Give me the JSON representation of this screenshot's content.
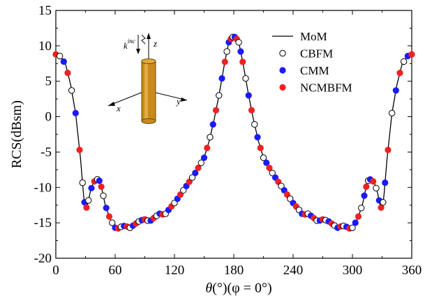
{
  "chart_data": {
    "type": "line",
    "xlabel": {
      "theta_symbol": "θ",
      "theta_unit": "(°)",
      "phi_part": "(φ = 0°)"
    },
    "ylabel": "RCS(dBsm)",
    "xlim": [
      0,
      360
    ],
    "ylim": [
      -20,
      15
    ],
    "xticks": [
      0,
      60,
      120,
      180,
      240,
      300,
      360
    ],
    "yticks": [
      -20,
      -15,
      -10,
      -5,
      0,
      5,
      10,
      15
    ],
    "grid": false,
    "legend": {
      "placement": "top-right"
    },
    "series": [
      {
        "name": "MoM",
        "style": "line",
        "color": "#000000"
      },
      {
        "name": "CBFM",
        "style": "open-circle",
        "color": "#000000",
        "sample_start": 1,
        "sample_step": 3
      },
      {
        "name": "CMM",
        "style": "filled-circle",
        "color": "#1a1aff",
        "sample_start": 2,
        "sample_step": 3
      },
      {
        "name": "NCMBFM",
        "style": "filled-circle",
        "color": "#ee2222",
        "sample_start": 0,
        "sample_step": 3
      }
    ],
    "curve": {
      "x": [
        0,
        5,
        10,
        15,
        20,
        25,
        28,
        30,
        32,
        35,
        38,
        40,
        43,
        45,
        47,
        50,
        55,
        60,
        62,
        65,
        70,
        75,
        80,
        85,
        90,
        95,
        100,
        105,
        110,
        115,
        120,
        125,
        130,
        135,
        140,
        145,
        150,
        155,
        160,
        165,
        170,
        173,
        175,
        178,
        180,
        182,
        185,
        187,
        190,
        195,
        200,
        205,
        210,
        215,
        220,
        225,
        230,
        235,
        240,
        245,
        250,
        255,
        260,
        265,
        270,
        275,
        280,
        285,
        290,
        295,
        298,
        300,
        305,
        310,
        313,
        315,
        317,
        320,
        322,
        325,
        328,
        330,
        332,
        335,
        340,
        345,
        350,
        355,
        360
      ],
      "y": [
        8.8,
        8.5,
        7.3,
        4.5,
        0.5,
        -6.0,
        -11.0,
        -13.2,
        -12.5,
        -10.5,
        -9.3,
        -9.0,
        -8.8,
        -9.3,
        -10.5,
        -12.5,
        -14.5,
        -15.7,
        -15.9,
        -15.6,
        -15.4,
        -15.7,
        -15.2,
        -14.7,
        -14.5,
        -14.8,
        -14.2,
        -13.7,
        -13.9,
        -13.0,
        -12.2,
        -11.2,
        -10.2,
        -9.2,
        -8.2,
        -7.0,
        -5.8,
        -3.5,
        -0.5,
        3.0,
        7.0,
        9.2,
        10.5,
        11.2,
        11.3,
        11.2,
        10.5,
        9.2,
        7.0,
        3.0,
        -0.5,
        -3.5,
        -5.8,
        -7.0,
        -8.2,
        -9.2,
        -10.2,
        -11.2,
        -12.2,
        -13.0,
        -13.9,
        -13.7,
        -14.2,
        -14.8,
        -14.5,
        -14.7,
        -15.2,
        -15.7,
        -15.4,
        -15.6,
        -15.9,
        -15.7,
        -14.5,
        -12.5,
        -10.5,
        -9.3,
        -8.8,
        -9.0,
        -9.3,
        -10.5,
        -12.5,
        -13.2,
        -11.0,
        -6.0,
        0.5,
        4.5,
        7.3,
        8.5,
        8.8
      ]
    },
    "marker_x": [
      0,
      4,
      8,
      12,
      16,
      20,
      24,
      27,
      29,
      31,
      33,
      36,
      39,
      42,
      44,
      46,
      48,
      51,
      54,
      57,
      60,
      63,
      66,
      69,
      72,
      75,
      78,
      81,
      84,
      87,
      90,
      93,
      96,
      99,
      102,
      105,
      108,
      111,
      114,
      117,
      120,
      123,
      126,
      129,
      132,
      135,
      138,
      141,
      144,
      147,
      150,
      153,
      156,
      159,
      162,
      165,
      168,
      171,
      173,
      175,
      177,
      179,
      181,
      183,
      185,
      187,
      189,
      192,
      195,
      198,
      201,
      204,
      207,
      210,
      213,
      216,
      219,
      222,
      225,
      228,
      231,
      234,
      237,
      240,
      243,
      246,
      249,
      252,
      255,
      258,
      261,
      264,
      267,
      270,
      273,
      276,
      279,
      282,
      285,
      288,
      291,
      294,
      297,
      300,
      303,
      306,
      309,
      312,
      314,
      316,
      318,
      321,
      324,
      327,
      329,
      331,
      333,
      336,
      340,
      344,
      348,
      352,
      356,
      360
    ]
  },
  "inset": {
    "k_label": "k",
    "k_superscript": "inc",
    "axis_labels": {
      "z": "z",
      "x": "x",
      "y": "y"
    }
  }
}
